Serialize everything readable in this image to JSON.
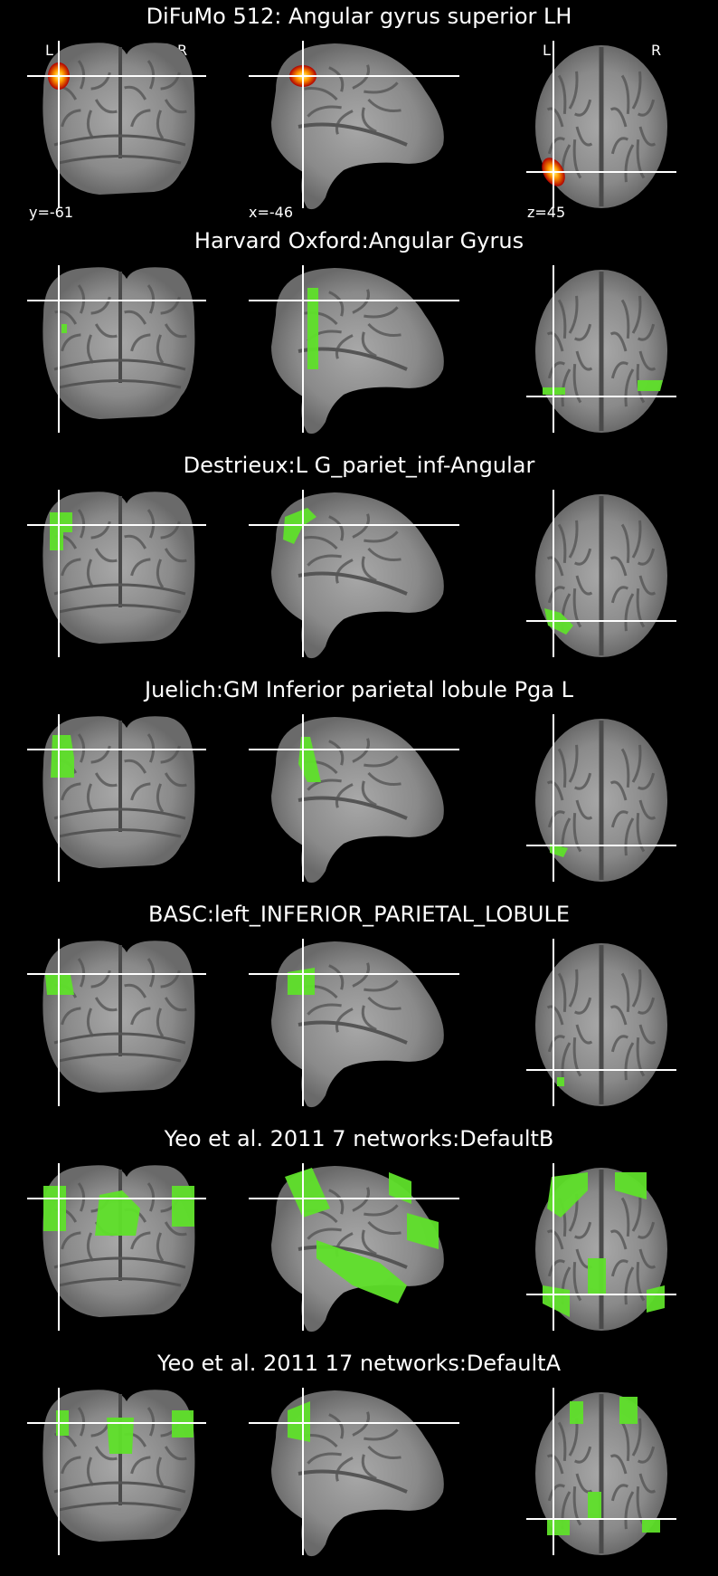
{
  "colors": {
    "background": "#000000",
    "crosshair": "#ffffff",
    "atlas_overlay": "#5fe02a",
    "brain": "#8c8c8c",
    "heat_hot": "#ffff80",
    "heat_mid": "#ff9a00",
    "heat_low": "#b00000"
  },
  "orientation": {
    "left": "L",
    "right": "R"
  },
  "cuts": {
    "y": "y=-61",
    "x": "x=-46",
    "z": "z=45"
  },
  "rows": [
    {
      "title": "DiFuMo 512: Angular gyrus superior LH"
    },
    {
      "title": "Harvard Oxford:Angular Gyrus"
    },
    {
      "title": "Destrieux:L G_pariet_inf-Angular"
    },
    {
      "title": "Juelich:GM Inferior parietal lobule Pga L"
    },
    {
      "title": "BASC:left_INFERIOR_PARIETAL_LOBULE"
    },
    {
      "title": "Yeo et al. 2011 7 networks:DefaultB"
    },
    {
      "title": "Yeo et al. 2011 17 networks:DefaultA"
    }
  ]
}
